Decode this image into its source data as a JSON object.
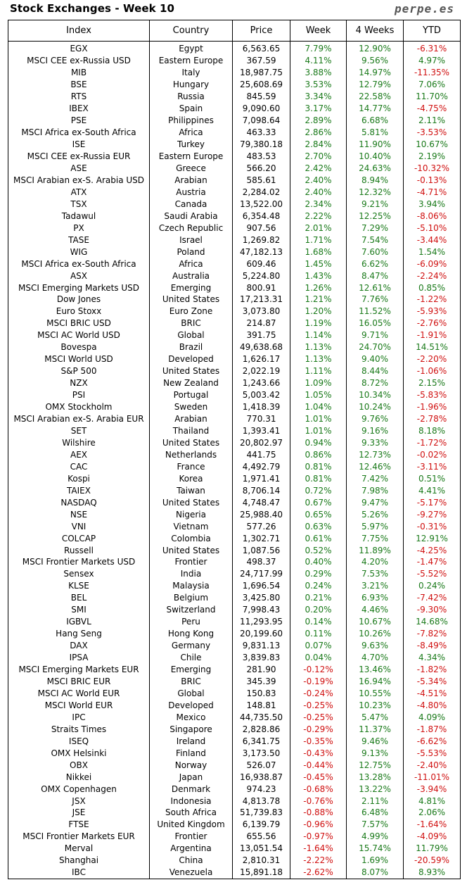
{
  "title": "Stock Exchanges - Week 10",
  "brand": "perpe.es",
  "columns": [
    "Index",
    "Country",
    "Price",
    "Week",
    "4 Weeks",
    "YTD"
  ],
  "rows": [
    [
      "EGX",
      "Egypt",
      "6,563.65",
      "7.79%",
      "12.90%",
      "-6.31%"
    ],
    [
      "MSCI CEE ex-Russia USD",
      "Eastern Europe",
      "367.59",
      "4.11%",
      "9.56%",
      "4.97%"
    ],
    [
      "MIB",
      "Italy",
      "18,987.75",
      "3.88%",
      "14.97%",
      "-11.35%"
    ],
    [
      "BSE",
      "Hungary",
      "25,608.69",
      "3.53%",
      "12.79%",
      "7.06%"
    ],
    [
      "RTS",
      "Russia",
      "845.59",
      "3.34%",
      "22.58%",
      "11.70%"
    ],
    [
      "IBEX",
      "Spain",
      "9,090.60",
      "3.17%",
      "14.77%",
      "-4.75%"
    ],
    [
      "PSE",
      "Philippines",
      "7,098.64",
      "2.89%",
      "6.68%",
      "2.11%"
    ],
    [
      "MSCI Africa ex-South Africa",
      "Africa",
      "463.33",
      "2.86%",
      "5.81%",
      "-3.53%"
    ],
    [
      "ISE",
      "Turkey",
      "79,380.18",
      "2.84%",
      "11.90%",
      "10.67%"
    ],
    [
      "MSCI CEE ex-Russia EUR",
      "Eastern Europe",
      "483.53",
      "2.70%",
      "10.40%",
      "2.19%"
    ],
    [
      "ASE",
      "Greece",
      "566.20",
      "2.42%",
      "24.63%",
      "-10.32%"
    ],
    [
      "MSCI Arabian ex-S. Arabia USD",
      "Arabian",
      "585.61",
      "2.40%",
      "8.94%",
      "-0.13%"
    ],
    [
      "ATX",
      "Austria",
      "2,284.02",
      "2.40%",
      "12.32%",
      "-4.71%"
    ],
    [
      "TSX",
      "Canada",
      "13,522.00",
      "2.34%",
      "9.21%",
      "3.94%"
    ],
    [
      "Tadawul",
      "Saudi Arabia",
      "6,354.48",
      "2.22%",
      "12.25%",
      "-8.06%"
    ],
    [
      "PX",
      "Czech Republic",
      "907.56",
      "2.01%",
      "7.29%",
      "-5.10%"
    ],
    [
      "TASE",
      "Israel",
      "1,269.82",
      "1.71%",
      "7.54%",
      "-3.44%"
    ],
    [
      "WIG",
      "Poland",
      "47,182.13",
      "1.68%",
      "7.60%",
      "1.54%"
    ],
    [
      "MSCI Africa ex-South Africa",
      "Africa",
      "609.46",
      "1.45%",
      "6.62%",
      "-6.09%"
    ],
    [
      "ASX",
      "Australia",
      "5,224.80",
      "1.43%",
      "8.47%",
      "-2.24%"
    ],
    [
      "MSCI Emerging Markets USD",
      "Emerging",
      "800.91",
      "1.26%",
      "12.61%",
      "0.85%"
    ],
    [
      "Dow Jones",
      "United States",
      "17,213.31",
      "1.21%",
      "7.76%",
      "-1.22%"
    ],
    [
      "Euro Stoxx",
      "Euro Zone",
      "3,073.80",
      "1.20%",
      "11.52%",
      "-5.93%"
    ],
    [
      "MSCI BRIC USD",
      "BRIC",
      "214.87",
      "1.19%",
      "16.05%",
      "-2.76%"
    ],
    [
      "MSCI AC World USD",
      "Global",
      "391.75",
      "1.14%",
      "9.71%",
      "-1.91%"
    ],
    [
      "Bovespa",
      "Brazil",
      "49,638.68",
      "1.13%",
      "24.70%",
      "14.51%"
    ],
    [
      "MSCI World USD",
      "Developed",
      "1,626.17",
      "1.13%",
      "9.40%",
      "-2.20%"
    ],
    [
      "S&P 500",
      "United States",
      "2,022.19",
      "1.11%",
      "8.44%",
      "-1.06%"
    ],
    [
      "NZX",
      "New Zealand",
      "1,243.66",
      "1.09%",
      "8.72%",
      "2.15%"
    ],
    [
      "PSI",
      "Portugal",
      "5,003.42",
      "1.05%",
      "10.34%",
      "-5.83%"
    ],
    [
      "OMX Stockholm",
      "Sweden",
      "1,418.39",
      "1.04%",
      "10.24%",
      "-1.96%"
    ],
    [
      "MSCI Arabian ex-S. Arabia EUR",
      "Arabian",
      "770.31",
      "1.01%",
      "9.76%",
      "-2.78%"
    ],
    [
      "SET",
      "Thailand",
      "1,393.41",
      "1.01%",
      "9.16%",
      "8.18%"
    ],
    [
      "Wilshire",
      "United States",
      "20,802.97",
      "0.94%",
      "9.33%",
      "-1.72%"
    ],
    [
      "AEX",
      "Netherlands",
      "441.75",
      "0.86%",
      "12.73%",
      "-0.02%"
    ],
    [
      "CAC",
      "France",
      "4,492.79",
      "0.81%",
      "12.46%",
      "-3.11%"
    ],
    [
      "Kospi",
      "Korea",
      "1,971.41",
      "0.81%",
      "7.42%",
      "0.51%"
    ],
    [
      "TAIEX",
      "Taiwan",
      "8,706.14",
      "0.72%",
      "7.98%",
      "4.41%"
    ],
    [
      "NASDAQ",
      "United States",
      "4,748.47",
      "0.67%",
      "9.47%",
      "-5.17%"
    ],
    [
      "NSE",
      "Nigeria",
      "25,988.40",
      "0.65%",
      "5.26%",
      "-9.27%"
    ],
    [
      "VNI",
      "Vietnam",
      "577.26",
      "0.63%",
      "5.97%",
      "-0.31%"
    ],
    [
      "COLCAP",
      "Colombia",
      "1,302.71",
      "0.61%",
      "7.75%",
      "12.91%"
    ],
    [
      "Russell",
      "United States",
      "1,087.56",
      "0.52%",
      "11.89%",
      "-4.25%"
    ],
    [
      "MSCI Frontier Markets USD",
      "Frontier",
      "498.37",
      "0.40%",
      "4.20%",
      "-1.47%"
    ],
    [
      "Sensex",
      "India",
      "24,717.99",
      "0.29%",
      "7.53%",
      "-5.52%"
    ],
    [
      "KLSE",
      "Malaysia",
      "1,696.54",
      "0.24%",
      "3.21%",
      "0.24%"
    ],
    [
      "BEL",
      "Belgium",
      "3,425.80",
      "0.21%",
      "6.93%",
      "-7.42%"
    ],
    [
      "SMI",
      "Switzerland",
      "7,998.43",
      "0.20%",
      "4.46%",
      "-9.30%"
    ],
    [
      "IGBVL",
      "Peru",
      "11,293.95",
      "0.14%",
      "10.67%",
      "14.68%"
    ],
    [
      "Hang Seng",
      "Hong Kong",
      "20,199.60",
      "0.11%",
      "10.26%",
      "-7.82%"
    ],
    [
      "DAX",
      "Germany",
      "9,831.13",
      "0.07%",
      "9.63%",
      "-8.49%"
    ],
    [
      "IPSA",
      "Chile",
      "3,839.83",
      "0.04%",
      "4.70%",
      "4.34%"
    ],
    [
      "MSCI Emerging Markets EUR",
      "Emerging",
      "281.90",
      "-0.12%",
      "13.46%",
      "-1.82%"
    ],
    [
      "MSCI BRIC EUR",
      "BRIC",
      "345.39",
      "-0.19%",
      "16.94%",
      "-5.34%"
    ],
    [
      "MSCI AC World EUR",
      "Global",
      "150.83",
      "-0.24%",
      "10.55%",
      "-4.51%"
    ],
    [
      "MSCI World EUR",
      "Developed",
      "148.81",
      "-0.25%",
      "10.23%",
      "-4.80%"
    ],
    [
      "IPC",
      "Mexico",
      "44,735.50",
      "-0.25%",
      "5.47%",
      "4.09%"
    ],
    [
      "Straits Times",
      "Singapore",
      "2,828.86",
      "-0.29%",
      "11.37%",
      "-1.87%"
    ],
    [
      "ISEQ",
      "Ireland",
      "6,341.75",
      "-0.35%",
      "9.46%",
      "-6.62%"
    ],
    [
      "OMX Helsinki",
      "Finland",
      "3,173.50",
      "-0.43%",
      "9.13%",
      "-5.53%"
    ],
    [
      "OBX",
      "Norway",
      "526.07",
      "-0.44%",
      "12.75%",
      "-2.40%"
    ],
    [
      "Nikkei",
      "Japan",
      "16,938.87",
      "-0.45%",
      "13.28%",
      "-11.01%"
    ],
    [
      "OMX Copenhagen",
      "Denmark",
      "974.23",
      "-0.68%",
      "13.22%",
      "-3.94%"
    ],
    [
      "JSX",
      "Indonesia",
      "4,813.78",
      "-0.76%",
      "2.11%",
      "4.81%"
    ],
    [
      "JSE",
      "South Africa",
      "51,739.83",
      "-0.88%",
      "6.48%",
      "2.06%"
    ],
    [
      "FTSE",
      "United Kingdom",
      "6,139.79",
      "-0.96%",
      "7.57%",
      "-1.64%"
    ],
    [
      "MSCI Frontier Markets EUR",
      "Frontier",
      "655.56",
      "-0.97%",
      "4.99%",
      "-4.09%"
    ],
    [
      "Merval",
      "Argentina",
      "13,051.54",
      "-1.64%",
      "15.74%",
      "11.79%"
    ],
    [
      "Shanghai",
      "China",
      "2,810.31",
      "-2.22%",
      "1.69%",
      "-20.59%"
    ],
    [
      "IBC",
      "Venezuela",
      "15,891.18",
      "-2.62%",
      "8.07%",
      "8.93%"
    ]
  ]
}
